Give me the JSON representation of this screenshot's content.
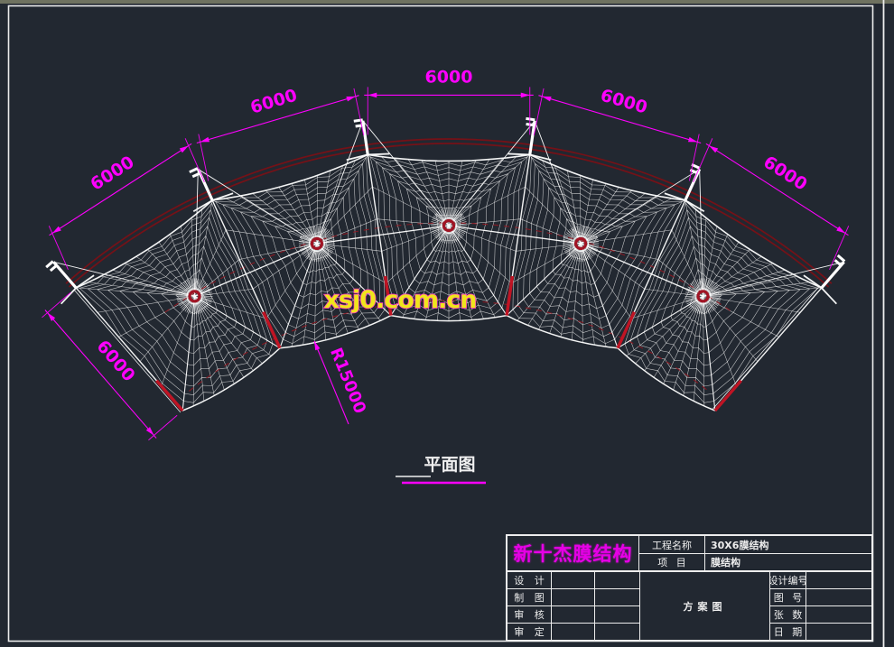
{
  "window": {
    "background": "#222831",
    "top_strip_color": "#6f7260",
    "frame_color": "#ededed"
  },
  "watermark": {
    "text": "xsj0.com.cn",
    "fill": "#efe51c",
    "outline": "#ff2ad4"
  },
  "drawing": {
    "plan_view_label": "平面图",
    "bay_dim_labels": [
      "6000",
      "6000",
      "6000",
      "6000",
      "6000"
    ],
    "depth_dim_label": "6000",
    "radius_dim_label": "R15000",
    "dim_color": "#ff00ff",
    "mesh_color": "#f2f2f2",
    "edge_cable_color": "#7a1016",
    "dashed_cable_color": "#8d1822",
    "post_color": "#c01424",
    "apex_ring_color": "#a01424"
  },
  "title_block": {
    "company_name": "新十杰膜结构",
    "project_label": "工程名称",
    "project_value": "30X6膜结构",
    "item_label": "项 目",
    "item_value": "膜结构",
    "scheme_label": "方案图",
    "sign_rows": [
      {
        "label": "设 计"
      },
      {
        "label": "制 图"
      },
      {
        "label": "审 核"
      },
      {
        "label": "审 定"
      }
    ],
    "meta_rows": [
      {
        "label": "设计编号"
      },
      {
        "label": "图 号"
      },
      {
        "label": "张 数"
      },
      {
        "label": "日 期"
      }
    ]
  }
}
